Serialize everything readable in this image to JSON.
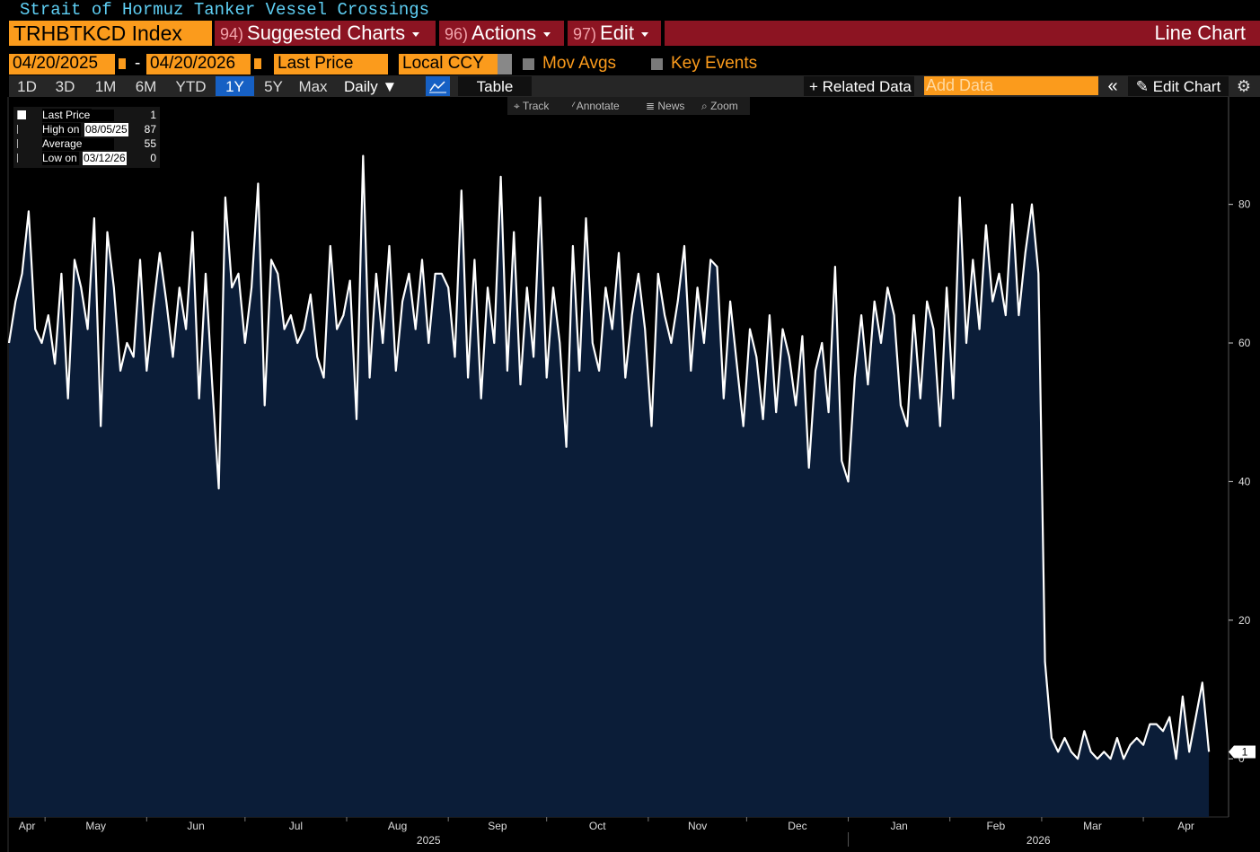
{
  "header": {
    "title": "Strait of Hormuz Tanker Vessel Crossings",
    "security": "TRHBTKCD Index",
    "menus": [
      {
        "num": "94)",
        "label": "Suggested Charts"
      },
      {
        "num": "96)",
        "label": "Actions"
      },
      {
        "num": "97)",
        "label": "Edit"
      }
    ],
    "chart_kind": "Line Chart"
  },
  "controls": {
    "start_date": "04/20/2025",
    "date_sep": "-",
    "end_date": "04/20/2026",
    "field": "Last Price",
    "currency": "Local CCY",
    "mov_avgs": "Mov Avgs",
    "key_events": "Key Events",
    "periods": [
      {
        "label": "1D"
      },
      {
        "label": "3D"
      },
      {
        "label": "1M"
      },
      {
        "label": "6M"
      },
      {
        "label": "YTD"
      },
      {
        "label": "1Y",
        "active": true
      },
      {
        "label": "5Y"
      },
      {
        "label": "Max"
      }
    ],
    "frequency": "Daily",
    "table": "Table",
    "related_data": "Related Data",
    "add_data": "Add Data",
    "edit_chart": "Edit Chart"
  },
  "toolbar": [
    "Track",
    "Annotate",
    "News",
    "Zoom"
  ],
  "legend": [
    {
      "label": "Last Price",
      "value": 1
    },
    {
      "label": "High on",
      "date": "08/05/25",
      "value": 87
    },
    {
      "label": "Average",
      "value": 55
    },
    {
      "label": "Low on",
      "date": "03/12/26",
      "value": 0
    }
  ],
  "chart_data": {
    "type": "area",
    "color": "#ffffff",
    "fill": "#0b1d38",
    "values": [
      60,
      66,
      70,
      79,
      62,
      60,
      64,
      57,
      70,
      52,
      72,
      68,
      62,
      78,
      48,
      76,
      68,
      56,
      60,
      58,
      72,
      56,
      65,
      73,
      66,
      58,
      68,
      62,
      76,
      52,
      70,
      54,
      39,
      81,
      68,
      70,
      60,
      68,
      83,
      51,
      72,
      70,
      62,
      64,
      60,
      62,
      67,
      58,
      55,
      74,
      62,
      64,
      69,
      49,
      87,
      55,
      70,
      60,
      74,
      56,
      66,
      70,
      62,
      72,
      60,
      70,
      70,
      68,
      58,
      82,
      55,
      72,
      52,
      68,
      60,
      84,
      56,
      76,
      54,
      68,
      58,
      81,
      55,
      68,
      60,
      45,
      74,
      56,
      78,
      60,
      56,
      68,
      62,
      73,
      55,
      64,
      70,
      62,
      48,
      70,
      64,
      60,
      66,
      74,
      56,
      68,
      60,
      72,
      71,
      52,
      66,
      57,
      48,
      62,
      58,
      49,
      64,
      50,
      62,
      58,
      51,
      61,
      42,
      56,
      60,
      50,
      71,
      43,
      40,
      55,
      64,
      54,
      66,
      60,
      68,
      64,
      51,
      48,
      64,
      52,
      66,
      62,
      48,
      68,
      52,
      81,
      60,
      72,
      62,
      77,
      66,
      70,
      64,
      80,
      64,
      73,
      80,
      70,
      14,
      3,
      1,
      3,
      1,
      0,
      4,
      1,
      0,
      1,
      0,
      3,
      0,
      2,
      3,
      2,
      5,
      5,
      4,
      6,
      0,
      9,
      1,
      6,
      11,
      1
    ],
    "xlim": [
      0,
      186
    ],
    "ylim": [
      -8.4,
      95.5
    ],
    "xticks": [
      {
        "value": -9.5,
        "label": "Apr"
      },
      {
        "value": 5.5,
        "label": "May"
      },
      {
        "value": 21,
        "label": "Jun"
      },
      {
        "value": 36,
        "label": "Jul"
      },
      {
        "value": 51.5,
        "label": "Aug"
      },
      {
        "value": 67,
        "label": "Sep"
      },
      {
        "value": 82,
        "label": "Oct"
      },
      {
        "value": 97.5,
        "label": "Nov"
      },
      {
        "value": 112.5,
        "label": "Dec"
      },
      {
        "value": 128,
        "label": "Jan"
      },
      {
        "value": 143.5,
        "label": "Feb"
      },
      {
        "value": 157.5,
        "label": "Mar"
      },
      {
        "value": 173,
        "label": "Apr"
      }
    ],
    "xyears": [
      {
        "value": -9.5,
        "label": "2025"
      },
      {
        "value": 128,
        "label": "2026"
      }
    ],
    "yticks": [
      0,
      20,
      40,
      60,
      80
    ],
    "grid": false
  }
}
